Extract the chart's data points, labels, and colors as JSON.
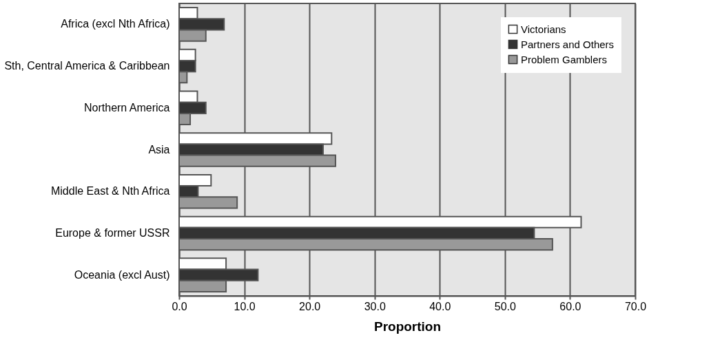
{
  "chart_data": {
    "type": "bar",
    "orientation": "horizontal",
    "xlabel": "Proportion",
    "categories": [
      "Africa (excl Nth Africa)",
      "Sth, Central America & Caribbean",
      "Northern America",
      "Asia",
      "Middle East & Nth Africa",
      "Europe & former USSR",
      "Oceania (excl Aust)"
    ],
    "series": [
      {
        "name": "Victorians",
        "color": "#ffffff",
        "values": [
          2.8,
          2.5,
          2.8,
          23.4,
          4.9,
          61.7,
          7.2
        ]
      },
      {
        "name": "Partners and Others",
        "color": "#333333",
        "values": [
          6.9,
          2.5,
          4.1,
          22.1,
          2.9,
          54.5,
          12.1
        ]
      },
      {
        "name": "Problem Gamblers",
        "color": "#999999",
        "values": [
          4.1,
          1.2,
          1.7,
          24.0,
          8.9,
          57.3,
          7.2
        ]
      }
    ],
    "xlim": [
      0,
      70
    ],
    "xticks": [
      {
        "value": 0,
        "label": "0.0"
      },
      {
        "value": 10,
        "label": "10.0"
      },
      {
        "value": 20,
        "label": "20.0"
      },
      {
        "value": 30,
        "label": "30.0"
      },
      {
        "value": 40,
        "label": "40.0"
      },
      {
        "value": 50,
        "label": "50.0"
      },
      {
        "value": 60,
        "label": "60.0"
      },
      {
        "value": 70,
        "label": "70.0"
      }
    ],
    "grid": "x",
    "legend": "top right"
  }
}
